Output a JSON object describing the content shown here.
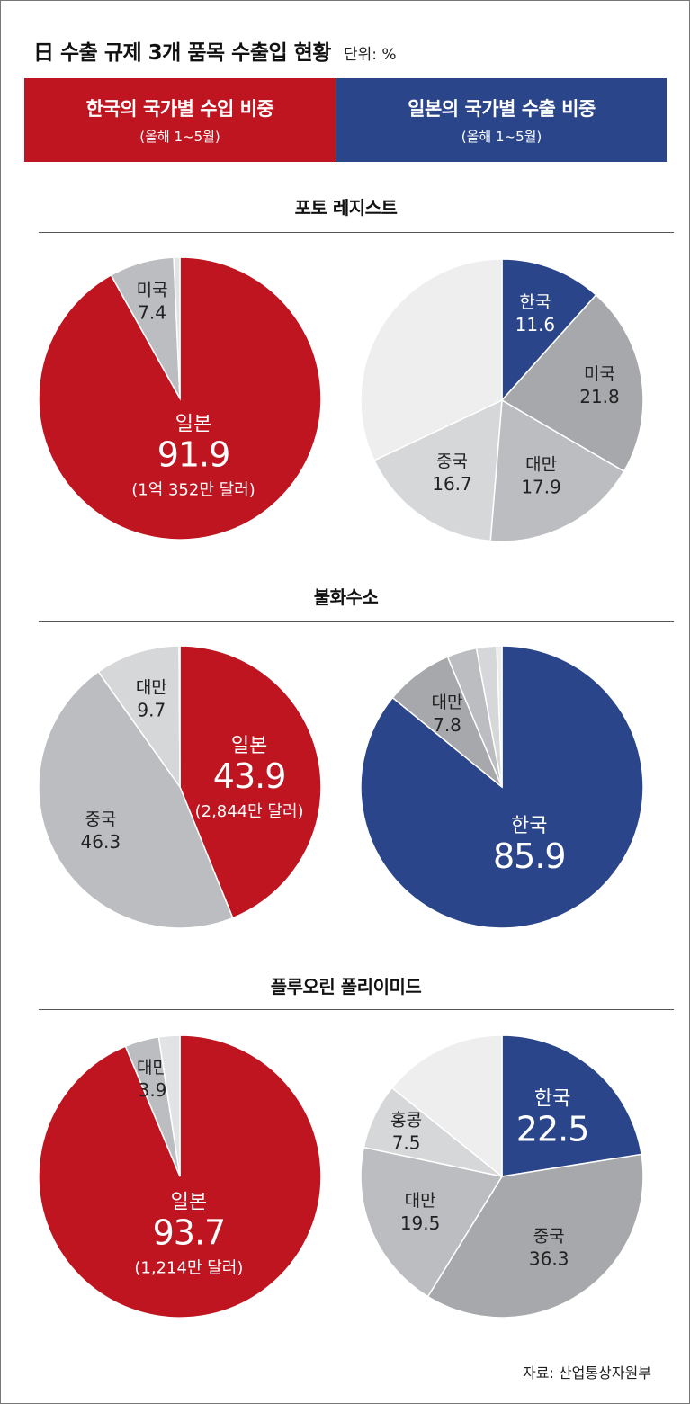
{
  "title": "日 수출 규제  3개 품목 수출입 현황",
  "unit": "단위: %",
  "banners": {
    "korea": {
      "title": "한국의 국가별 수입 비중",
      "sub": "(올해 1~5월)",
      "color": "#be1520"
    },
    "japan": {
      "title": "일본의 국가별 수출 비중",
      "sub": "(올해 1~5월)",
      "color": "#2a4589"
    }
  },
  "sections": [
    {
      "title": "포토 레지스트"
    },
    {
      "title": "불화수소"
    },
    {
      "title": "플루오린 폴리이미드"
    }
  ],
  "source": "자료: 산업통상자원부",
  "colors": {
    "red": "#be1520",
    "blue": "#2a4589",
    "gray_dark": "#a7a8ab",
    "gray_mid": "#bcbdc0",
    "gray_light": "#d6d7d9",
    "gray_pale": "#eeeeef"
  },
  "chart_data": [
    {
      "type": "pie",
      "section": "포토 레지스트",
      "side": "korea_import",
      "slices": [
        {
          "label": "일본",
          "value": 91.9,
          "text": "91.9",
          "note": "(1억 352만 달러)",
          "color": "#be1520",
          "labeled": true
        },
        {
          "label": "미국",
          "value": 7.4,
          "text": "7.4",
          "color": "#bcbdc0",
          "labeled": true
        },
        {
          "label": "",
          "value": 0.7,
          "text": "",
          "color": "#e2e3e5",
          "labeled": false
        }
      ]
    },
    {
      "type": "pie",
      "section": "포토 레지스트",
      "side": "japan_export",
      "slices": [
        {
          "label": "한국",
          "value": 11.6,
          "text": "11.6",
          "color": "#2a4589",
          "labeled": true
        },
        {
          "label": "미국",
          "value": 21.8,
          "text": "21.8",
          "color": "#a7a8ab",
          "labeled": true
        },
        {
          "label": "대만",
          "value": 17.9,
          "text": "17.9",
          "color": "#bcbdc0",
          "labeled": true
        },
        {
          "label": "중국",
          "value": 16.7,
          "text": "16.7",
          "color": "#d6d7d9",
          "labeled": true
        },
        {
          "label": "",
          "value": 32.0,
          "text": "",
          "color": "#eeeeef",
          "labeled": false
        }
      ]
    },
    {
      "type": "pie",
      "section": "불화수소",
      "side": "korea_import",
      "slices": [
        {
          "label": "일본",
          "value": 43.9,
          "text": "43.9",
          "note": "(2,844만 달러)",
          "color": "#be1520",
          "labeled": true
        },
        {
          "label": "중국",
          "value": 46.3,
          "text": "46.3",
          "color": "#bcbdc0",
          "labeled": true
        },
        {
          "label": "대만",
          "value": 9.7,
          "text": "9.7",
          "color": "#d6d7d9",
          "labeled": true
        },
        {
          "label": "",
          "value": 0.1,
          "text": "",
          "color": "#e2e3e5",
          "labeled": false
        }
      ]
    },
    {
      "type": "pie",
      "section": "불화수소",
      "side": "japan_export",
      "slices": [
        {
          "label": "한국",
          "value": 85.9,
          "text": "85.9",
          "color": "#2a4589",
          "labeled": true
        },
        {
          "label": "대만",
          "value": 7.8,
          "text": "7.8",
          "color": "#a7a8ab",
          "labeled": true
        },
        {
          "label": "",
          "value": 3.4,
          "text": "",
          "color": "#bcbdc0",
          "labeled": false
        },
        {
          "label": "",
          "value": 2.3,
          "text": "",
          "color": "#d6d7d9",
          "labeled": false
        },
        {
          "label": "",
          "value": 0.6,
          "text": "",
          "color": "#eeeeef",
          "labeled": false
        }
      ]
    },
    {
      "type": "pie",
      "section": "플루오린 폴리이미드",
      "side": "korea_import",
      "slices": [
        {
          "label": "일본",
          "value": 93.7,
          "text": "93.7",
          "note": "(1,214만 달러)",
          "color": "#be1520",
          "labeled": true
        },
        {
          "label": "대만",
          "value": 3.9,
          "text": "3.9",
          "color": "#bcbdc0",
          "labeled": true
        },
        {
          "label": "",
          "value": 2.4,
          "text": "",
          "color": "#e2e3e5",
          "labeled": false
        }
      ]
    },
    {
      "type": "pie",
      "section": "플루오린 폴리이미드",
      "side": "japan_export",
      "slices": [
        {
          "label": "한국",
          "value": 22.5,
          "text": "22.5",
          "color": "#2a4589",
          "labeled": true
        },
        {
          "label": "중국",
          "value": 36.3,
          "text": "36.3",
          "color": "#a7a8ab",
          "labeled": true
        },
        {
          "label": "대만",
          "value": 19.5,
          "text": "19.5",
          "color": "#bcbdc0",
          "labeled": true
        },
        {
          "label": "홍콩",
          "value": 7.5,
          "text": "7.5",
          "color": "#d6d7d9",
          "labeled": true
        },
        {
          "label": "",
          "value": 14.2,
          "text": "",
          "color": "#eeeeef",
          "labeled": false
        }
      ]
    }
  ]
}
